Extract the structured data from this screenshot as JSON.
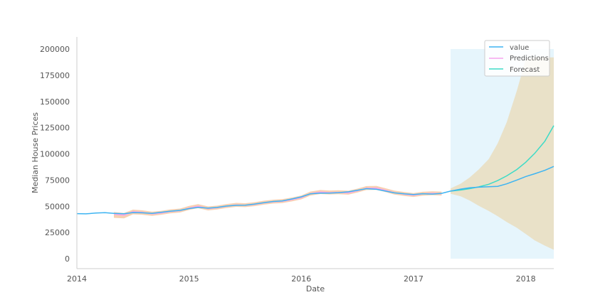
{
  "chart_data": {
    "type": "line",
    "title": "",
    "xlabel": "Date",
    "ylabel": "Median House Prices",
    "xlim": [
      2014.0,
      2018.25
    ],
    "ylim": [
      0,
      200000
    ],
    "xticks": [
      {
        "value": 2014,
        "label": "2014"
      },
      {
        "value": 2015,
        "label": "2015"
      },
      {
        "value": 2016,
        "label": "2016"
      },
      {
        "value": 2017,
        "label": "2017"
      },
      {
        "value": 2018,
        "label": "2018"
      }
    ],
    "yticks": [
      0,
      25000,
      50000,
      75000,
      100000,
      125000,
      150000,
      175000,
      200000
    ],
    "grid": false,
    "legend_position": "top-right",
    "colors": {
      "value": "#3db4f2",
      "predictions": "#f5a3ee",
      "predictions_ci": "#f6cba8",
      "forecast": "#3ddbc7",
      "forecast_ci": "#e9dfc5",
      "forecast_span": "#e6f5fc"
    },
    "forecast_span": {
      "x_start": 2017.33,
      "x_end": 2018.25,
      "y_low": 0,
      "y_high": 200000
    },
    "series": [
      {
        "name": "value",
        "x": [
          2014.0,
          2014.08,
          2014.17,
          2014.25,
          2014.33,
          2014.42,
          2014.5,
          2014.58,
          2014.67,
          2014.75,
          2014.83,
          2014.92,
          2015.0,
          2015.08,
          2015.17,
          2015.25,
          2015.33,
          2015.42,
          2015.5,
          2015.58,
          2015.67,
          2015.75,
          2015.83,
          2015.92,
          2016.0,
          2016.08,
          2016.17,
          2016.25,
          2016.33,
          2016.42,
          2016.5,
          2016.58,
          2016.67,
          2016.75,
          2016.83,
          2016.92,
          2017.0,
          2017.08,
          2017.17,
          2017.25,
          2017.33,
          2017.42,
          2017.5,
          2017.58,
          2017.67,
          2017.75,
          2017.83,
          2017.92,
          2018.0,
          2018.08,
          2018.17,
          2018.25
        ],
        "y": [
          43000,
          42800,
          43500,
          43900,
          43200,
          42900,
          44000,
          43800,
          43200,
          44200,
          45300,
          46100,
          47800,
          49000,
          48200,
          48900,
          50200,
          50900,
          51000,
          52000,
          53500,
          54600,
          55100,
          57000,
          59000,
          61800,
          62500,
          62600,
          63000,
          63800,
          65200,
          66800,
          66200,
          64500,
          62800,
          61800,
          61200,
          62000,
          61600,
          62300,
          64500,
          66400,
          67600,
          68200,
          68600,
          69000,
          71400,
          75000,
          78400,
          81000,
          84300,
          88000
        ]
      },
      {
        "name": "Predictions",
        "x": [
          2014.33,
          2014.42,
          2014.5,
          2014.58,
          2014.67,
          2014.75,
          2014.83,
          2014.92,
          2015.0,
          2015.08,
          2015.17,
          2015.25,
          2015.33,
          2015.42,
          2015.5,
          2015.58,
          2015.67,
          2015.75,
          2015.83,
          2015.92,
          2016.0,
          2016.08,
          2016.17,
          2016.25,
          2016.33,
          2016.42,
          2016.5,
          2016.58,
          2016.67,
          2016.75,
          2016.83,
          2016.92,
          2017.0,
          2017.08,
          2017.17,
          2017.25
        ],
        "y": [
          42500,
          41500,
          44800,
          44200,
          42800,
          43600,
          45000,
          45800,
          48300,
          50000,
          47800,
          48600,
          50000,
          51200,
          50900,
          51800,
          53300,
          54300,
          54800,
          56400,
          58300,
          62000,
          63500,
          63000,
          63200,
          62800,
          64800,
          67200,
          67400,
          65200,
          62900,
          61500,
          60600,
          61800,
          62300,
          62000
        ],
        "ci_low": [
          39000,
          38500,
          42300,
          42000,
          40900,
          41800,
          43200,
          44100,
          46500,
          48200,
          46000,
          46900,
          48300,
          49500,
          49200,
          50100,
          51600,
          52600,
          53100,
          54700,
          56600,
          60200,
          61700,
          61300,
          61500,
          61100,
          63100,
          65500,
          65700,
          63500,
          61200,
          59800,
          58900,
          60100,
          60600,
          60300
        ],
        "ci_high": [
          44500,
          43500,
          46800,
          46200,
          44800,
          45600,
          47000,
          47800,
          50300,
          52000,
          49800,
          50600,
          52000,
          53200,
          52900,
          53800,
          55300,
          56300,
          56800,
          58400,
          60300,
          64000,
          65500,
          65000,
          65200,
          64800,
          66800,
          69200,
          69400,
          67200,
          64900,
          63500,
          62600,
          63800,
          64300,
          64000
        ]
      },
      {
        "name": "Forecast",
        "x": [
          2017.33,
          2017.42,
          2017.5,
          2017.58,
          2017.67,
          2017.75,
          2017.83,
          2017.92,
          2018.0,
          2018.08,
          2018.17,
          2018.25
        ],
        "y": [
          64500,
          65500,
          66800,
          68500,
          71000,
          74500,
          79000,
          85000,
          92000,
          100500,
          112000,
          127000
        ],
        "ci_low": [
          62000,
          59500,
          55500,
          50500,
          45500,
          40500,
          35000,
          29500,
          23500,
          17500,
          12500,
          8500
        ],
        "ci_high": [
          67000,
          71500,
          77500,
          85000,
          95000,
          110000,
          130000,
          160000,
          190000,
          192000,
          192000,
          192000
        ]
      }
    ]
  }
}
